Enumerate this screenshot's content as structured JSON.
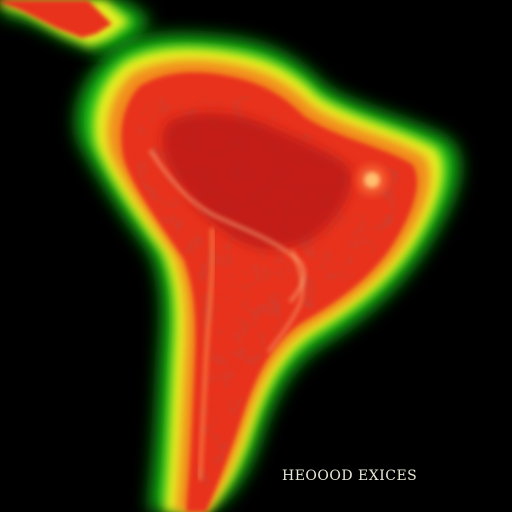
{
  "map": {
    "caption": "HEOOOD EXICES",
    "colors": {
      "background": "#000000",
      "outer_glow": "#18c418",
      "yellow_band": "#e8f020",
      "orange_band": "#f28a1a",
      "land_red": "#e8321c",
      "dark_red": "#b81812",
      "hotspot": "#ff8a3a",
      "caption": "#e8e8d8"
    },
    "legend": []
  }
}
